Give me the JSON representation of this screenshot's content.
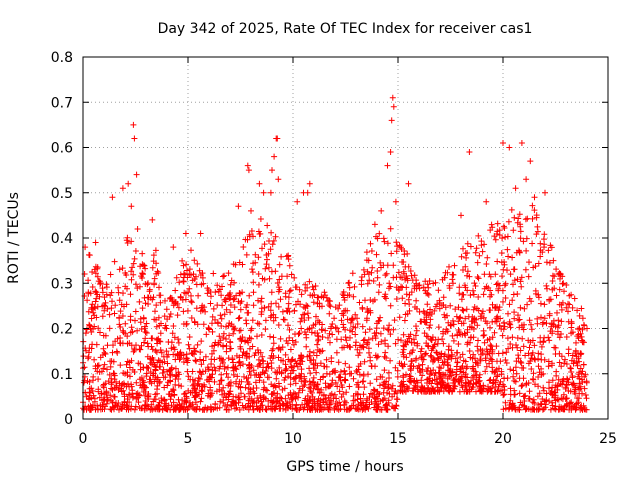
{
  "chart_data": {
    "type": "scatter",
    "title": "Day 342 of 2025, Rate Of TEC Index for receiver cas1",
    "xlabel": "GPS time / hours",
    "ylabel": "ROTI / TECUs",
    "xlim": [
      0,
      25
    ],
    "ylim": [
      0,
      0.8
    ],
    "xticks": [
      "0",
      "5",
      "10",
      "15",
      "20",
      "25"
    ],
    "yticks": [
      "0",
      "0.1",
      "0.2",
      "0.3",
      "0.4",
      "0.5",
      "0.6",
      "0.7",
      "0.8"
    ],
    "grid": true,
    "marker": "plus",
    "color": "#ff0000",
    "envelope_upper": [
      [
        0.0,
        0.33
      ],
      [
        0.5,
        0.4
      ],
      [
        1.0,
        0.28
      ],
      [
        1.5,
        0.36
      ],
      [
        2.0,
        0.4
      ],
      [
        2.5,
        0.43
      ],
      [
        3.0,
        0.33
      ],
      [
        3.5,
        0.38
      ],
      [
        4.0,
        0.25
      ],
      [
        4.5,
        0.33
      ],
      [
        5.0,
        0.38
      ],
      [
        5.5,
        0.36
      ],
      [
        6.0,
        0.33
      ],
      [
        6.5,
        0.31
      ],
      [
        7.0,
        0.35
      ],
      [
        7.5,
        0.38
      ],
      [
        8.0,
        0.43
      ],
      [
        8.5,
        0.45
      ],
      [
        9.0,
        0.42
      ],
      [
        9.5,
        0.38
      ],
      [
        10.0,
        0.35
      ],
      [
        10.5,
        0.32
      ],
      [
        11.0,
        0.3
      ],
      [
        11.5,
        0.28
      ],
      [
        12.0,
        0.26
      ],
      [
        12.5,
        0.3
      ],
      [
        13.0,
        0.34
      ],
      [
        13.5,
        0.37
      ],
      [
        14.0,
        0.42
      ],
      [
        14.5,
        0.44
      ],
      [
        15.0,
        0.4
      ],
      [
        15.5,
        0.36
      ],
      [
        16.0,
        0.33
      ],
      [
        16.5,
        0.31
      ],
      [
        17.0,
        0.3
      ],
      [
        17.5,
        0.35
      ],
      [
        18.0,
        0.38
      ],
      [
        18.5,
        0.42
      ],
      [
        19.0,
        0.4
      ],
      [
        19.5,
        0.44
      ],
      [
        20.0,
        0.43
      ],
      [
        20.5,
        0.47
      ],
      [
        21.0,
        0.45
      ],
      [
        21.5,
        0.48
      ],
      [
        22.0,
        0.42
      ],
      [
        22.5,
        0.36
      ],
      [
        23.0,
        0.3
      ],
      [
        23.5,
        0.26
      ],
      [
        24.0,
        0.24
      ]
    ],
    "baseline": 0.02,
    "outliers": [
      [
        0.1,
        0.38
      ],
      [
        0.6,
        0.39
      ],
      [
        1.4,
        0.49
      ],
      [
        1.9,
        0.51
      ],
      [
        2.15,
        0.52
      ],
      [
        2.3,
        0.47
      ],
      [
        2.4,
        0.65
      ],
      [
        2.45,
        0.62
      ],
      [
        2.55,
        0.54
      ],
      [
        2.6,
        0.42
      ],
      [
        3.3,
        0.44
      ],
      [
        4.3,
        0.38
      ],
      [
        4.9,
        0.41
      ],
      [
        5.6,
        0.41
      ],
      [
        7.4,
        0.47
      ],
      [
        7.85,
        0.56
      ],
      [
        7.9,
        0.55
      ],
      [
        8.0,
        0.46
      ],
      [
        8.4,
        0.52
      ],
      [
        8.6,
        0.5
      ],
      [
        8.95,
        0.5
      ],
      [
        9.0,
        0.55
      ],
      [
        9.1,
        0.58
      ],
      [
        9.2,
        0.62
      ],
      [
        9.25,
        0.62
      ],
      [
        9.3,
        0.53
      ],
      [
        10.2,
        0.48
      ],
      [
        10.5,
        0.5
      ],
      [
        10.7,
        0.5
      ],
      [
        10.8,
        0.52
      ],
      [
        13.9,
        0.43
      ],
      [
        14.2,
        0.46
      ],
      [
        14.5,
        0.56
      ],
      [
        14.65,
        0.59
      ],
      [
        14.7,
        0.66
      ],
      [
        14.75,
        0.71
      ],
      [
        14.8,
        0.69
      ],
      [
        14.9,
        0.48
      ],
      [
        15.5,
        0.52
      ],
      [
        18.0,
        0.45
      ],
      [
        18.4,
        0.59
      ],
      [
        19.2,
        0.48
      ],
      [
        20.0,
        0.61
      ],
      [
        20.3,
        0.6
      ],
      [
        20.6,
        0.51
      ],
      [
        20.9,
        0.61
      ],
      [
        21.1,
        0.53
      ],
      [
        21.3,
        0.57
      ],
      [
        21.5,
        0.49
      ],
      [
        22.0,
        0.5
      ],
      [
        22.4,
        0.35
      ]
    ]
  }
}
